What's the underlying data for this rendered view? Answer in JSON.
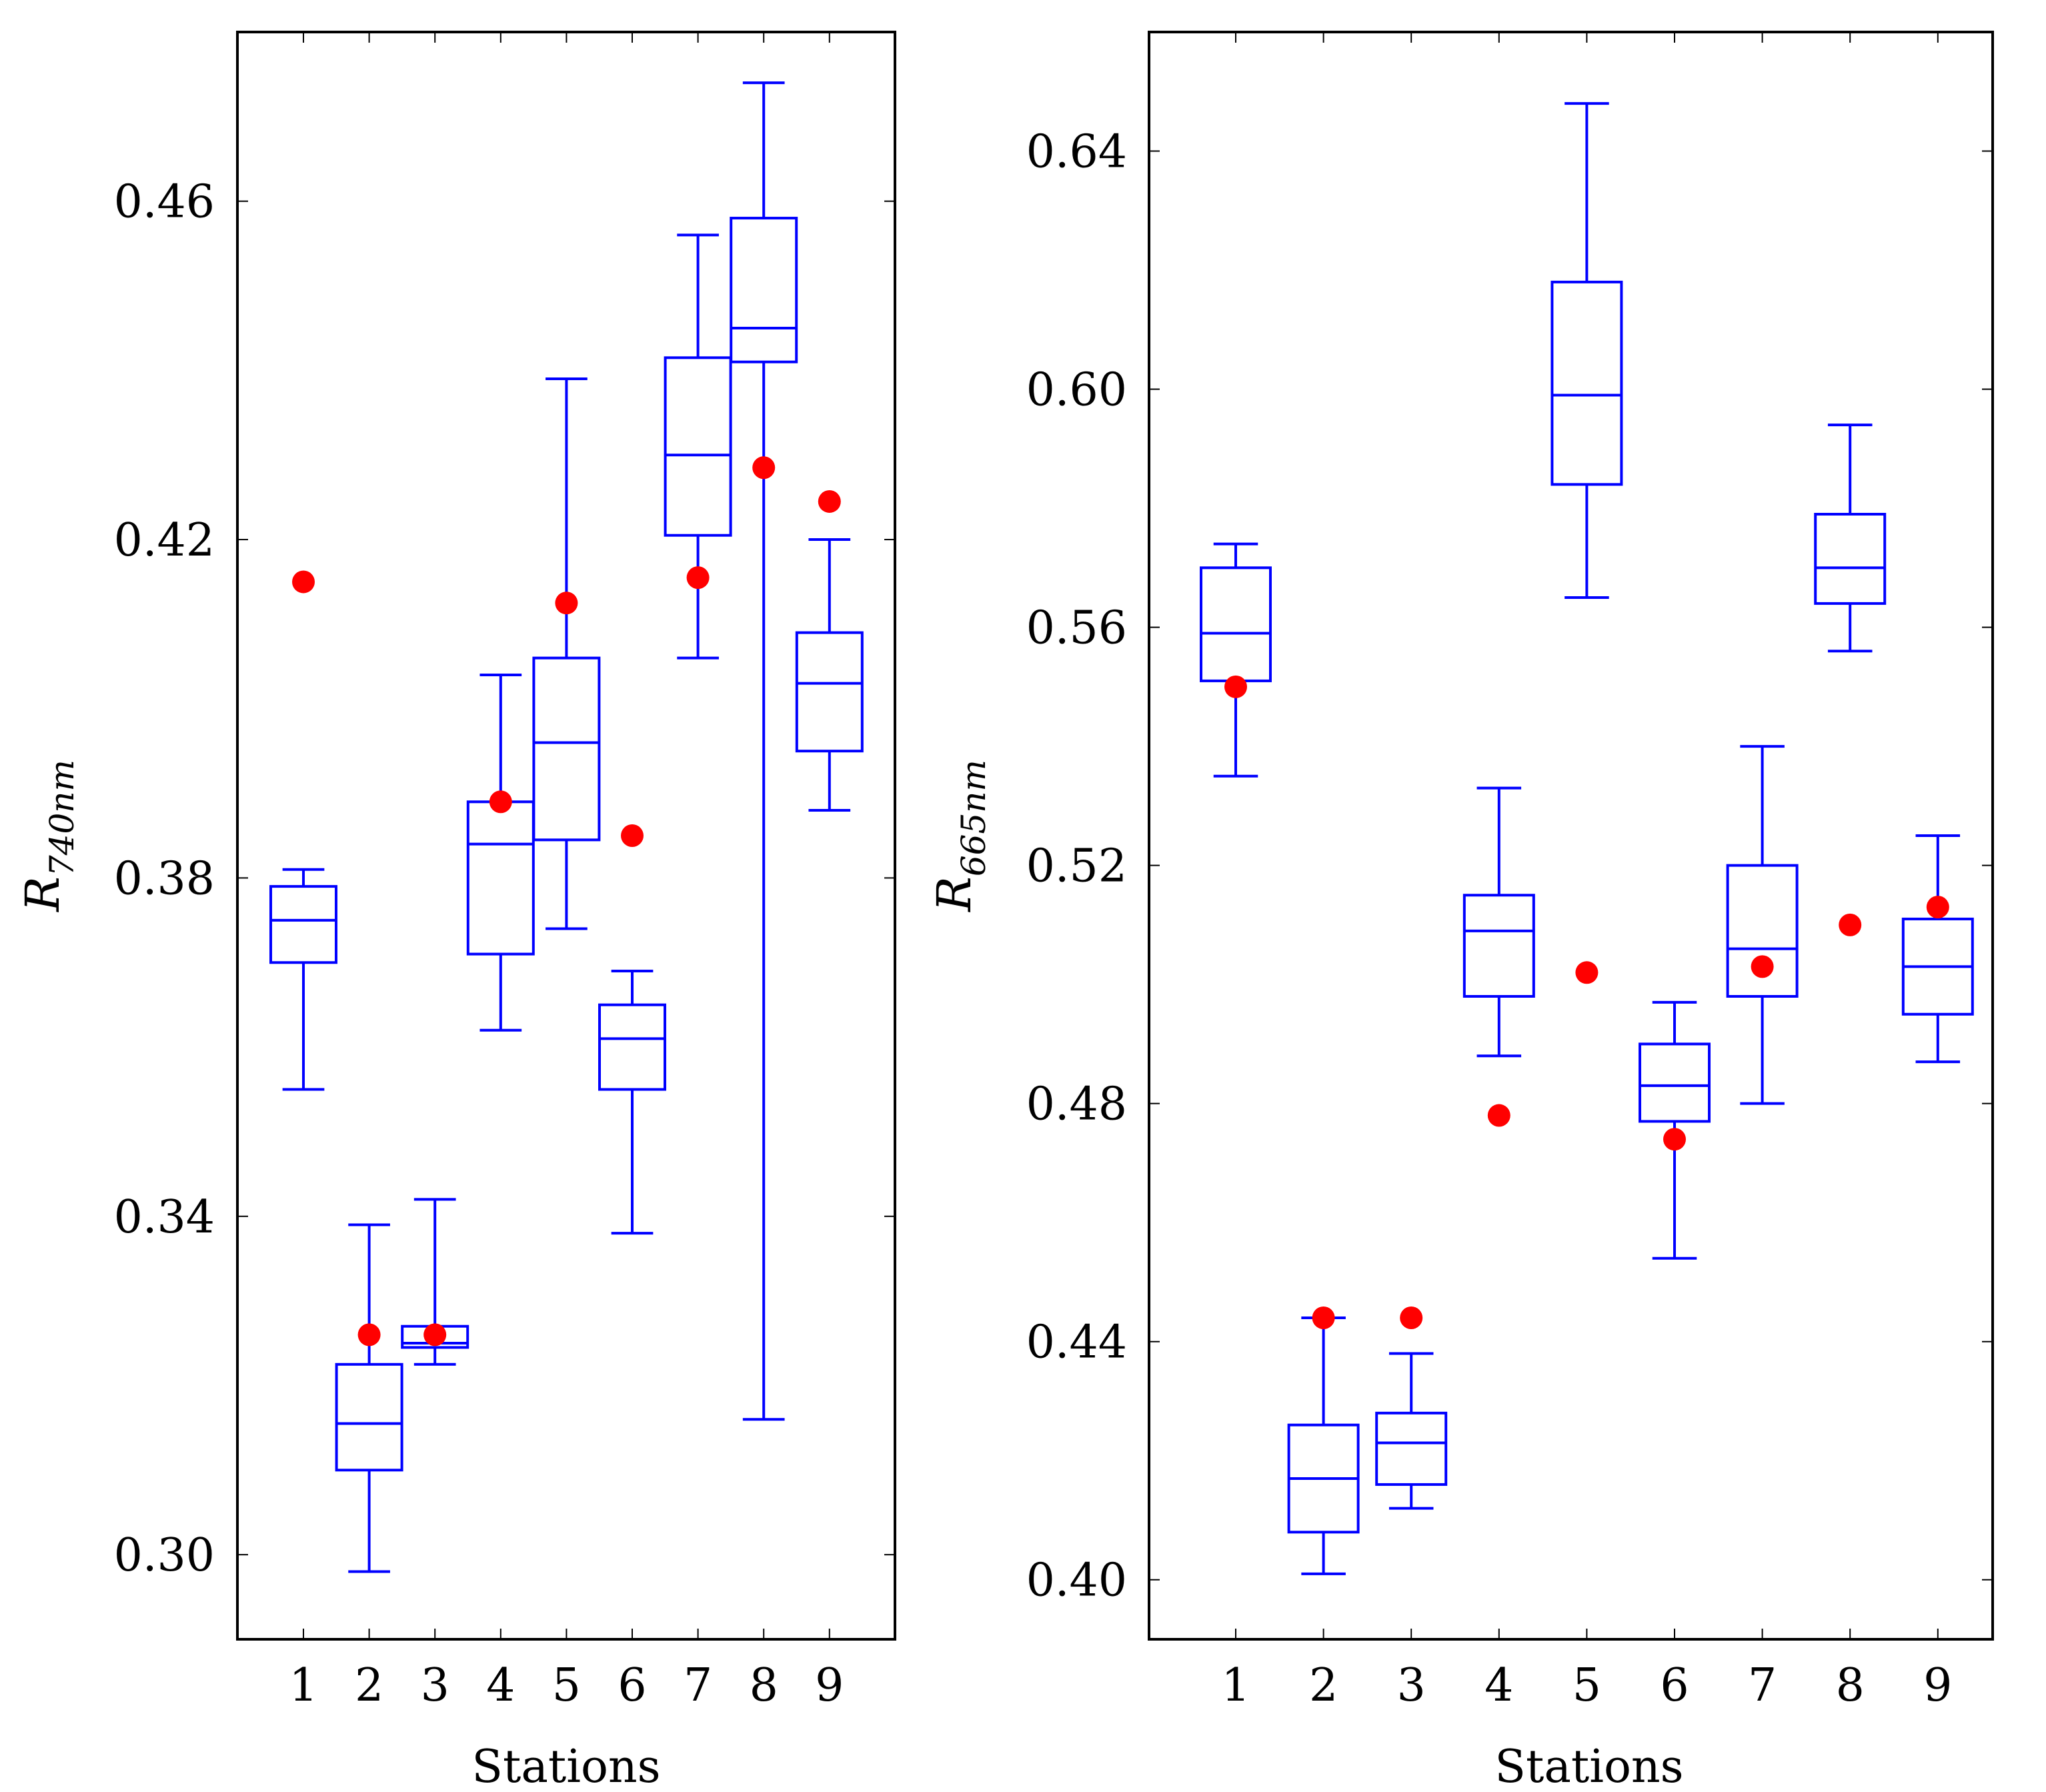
{
  "colors": {
    "box": "#0000ff",
    "point": "#ff0000",
    "axis": "#000000"
  },
  "chart_data": [
    {
      "type": "boxplot",
      "title": "",
      "xlabel": "Stations",
      "ylabel": {
        "main": "R",
        "sub": "740nm"
      },
      "categories": [
        "1",
        "2",
        "3",
        "4",
        "5",
        "6",
        "7",
        "8",
        "9"
      ],
      "ylim": [
        0.29,
        0.48
      ],
      "yticks": [
        0.3,
        0.34,
        0.38,
        0.42,
        0.46
      ],
      "ytick_labels": [
        "0.30",
        "0.34",
        "0.38",
        "0.42",
        "0.46"
      ],
      "boxes": [
        {
          "min": 0.355,
          "q1": 0.37,
          "median": 0.375,
          "q3": 0.379,
          "max": 0.381
        },
        {
          "min": 0.298,
          "q1": 0.31,
          "median": 0.3155,
          "q3": 0.3225,
          "max": 0.339
        },
        {
          "min": 0.3225,
          "q1": 0.3245,
          "median": 0.325,
          "q3": 0.327,
          "max": 0.342
        },
        {
          "min": 0.362,
          "q1": 0.371,
          "median": 0.384,
          "q3": 0.389,
          "max": 0.404
        },
        {
          "min": 0.374,
          "q1": 0.3845,
          "median": 0.396,
          "q3": 0.406,
          "max": 0.439
        },
        {
          "min": 0.338,
          "q1": 0.355,
          "median": 0.361,
          "q3": 0.365,
          "max": 0.369
        },
        {
          "min": 0.406,
          "q1": 0.4205,
          "median": 0.43,
          "q3": 0.4415,
          "max": 0.456
        },
        {
          "min": 0.316,
          "q1": 0.441,
          "median": 0.445,
          "q3": 0.458,
          "max": 0.474
        },
        {
          "min": 0.388,
          "q1": 0.395,
          "median": 0.403,
          "q3": 0.409,
          "max": 0.42
        }
      ],
      "points": [
        0.415,
        0.326,
        0.326,
        0.389,
        0.4125,
        0.385,
        0.4155,
        0.4285,
        0.4245
      ]
    },
    {
      "type": "boxplot",
      "title": "",
      "xlabel": "Stations",
      "ylabel": {
        "main": "R",
        "sub": "665nm"
      },
      "categories": [
        "1",
        "2",
        "3",
        "4",
        "5",
        "6",
        "7",
        "8",
        "9"
      ],
      "ylim": [
        0.39,
        0.66
      ],
      "yticks": [
        0.4,
        0.44,
        0.48,
        0.52,
        0.56,
        0.6,
        0.64
      ],
      "ytick_labels": [
        "0.40",
        "0.44",
        "0.48",
        "0.52",
        "0.56",
        "0.60",
        "0.64"
      ],
      "boxes": [
        {
          "min": 0.535,
          "q1": 0.551,
          "median": 0.559,
          "q3": 0.57,
          "max": 0.574
        },
        {
          "min": 0.401,
          "q1": 0.408,
          "median": 0.417,
          "q3": 0.426,
          "max": 0.444
        },
        {
          "min": 0.412,
          "q1": 0.416,
          "median": 0.423,
          "q3": 0.428,
          "max": 0.438
        },
        {
          "min": 0.488,
          "q1": 0.498,
          "median": 0.509,
          "q3": 0.515,
          "max": 0.533
        },
        {
          "min": 0.565,
          "q1": 0.584,
          "median": 0.599,
          "q3": 0.618,
          "max": 0.648
        },
        {
          "min": 0.454,
          "q1": 0.477,
          "median": 0.483,
          "q3": 0.49,
          "max": 0.497
        },
        {
          "min": 0.48,
          "q1": 0.498,
          "median": 0.506,
          "q3": 0.52,
          "max": 0.54
        },
        {
          "min": 0.556,
          "q1": 0.564,
          "median": 0.57,
          "q3": 0.579,
          "max": 0.594
        },
        {
          "min": 0.487,
          "q1": 0.495,
          "median": 0.503,
          "q3": 0.511,
          "max": 0.525
        }
      ],
      "points": [
        0.55,
        0.444,
        0.444,
        0.478,
        0.502,
        0.474,
        0.503,
        0.51,
        0.513
      ]
    }
  ]
}
